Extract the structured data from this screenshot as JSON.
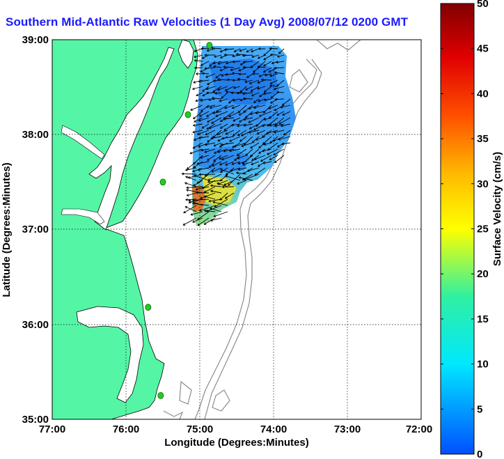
{
  "title": "Southern Mid-Atlantic Raw Velocities (1 Day Avg) 2008/07/12 0200 GMT",
  "x_axis": {
    "label": "Longitude (Degrees:Minutes)",
    "ticks": [
      "77:00",
      "76:00",
      "75:00",
      "74:00",
      "73:00",
      "72:00"
    ],
    "range": [
      -77,
      -72
    ]
  },
  "y_axis": {
    "label": "Latitude (Degrees:Minutes)",
    "ticks": [
      "39:00",
      "38:00",
      "37:00",
      "36:00",
      "35:00"
    ],
    "range": [
      35,
      39
    ]
  },
  "colorbar": {
    "label": "Surface Velocity (cm/s)",
    "ticks": [
      "0",
      "5",
      "10",
      "15",
      "20",
      "25",
      "30",
      "35",
      "40",
      "45",
      "50"
    ],
    "range": [
      0,
      50
    ]
  },
  "colors": {
    "land": "#55f5a6",
    "water": "#ffffff",
    "title": "#1a1aff",
    "grid": "#000000",
    "isobath": "#8c8c8c",
    "station": "#22cc22"
  },
  "stations": [
    {
      "lon": -74.87,
      "lat": 38.94
    },
    {
      "lon": -75.16,
      "lat": 38.21
    },
    {
      "lon": -75.5,
      "lat": 37.5
    },
    {
      "lon": -75.7,
      "lat": 36.18
    },
    {
      "lon": -75.53,
      "lat": 35.25
    }
  ]
}
